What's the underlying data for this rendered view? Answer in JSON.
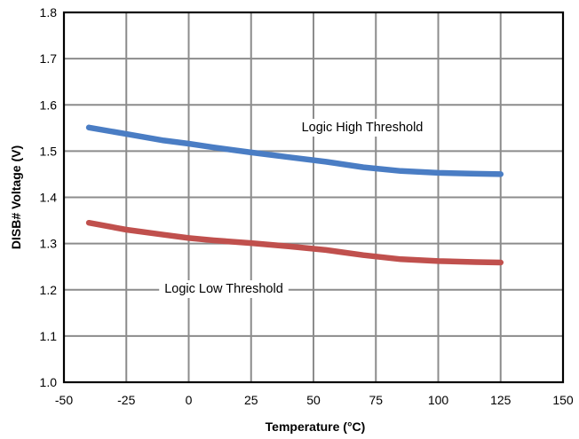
{
  "chart_data": {
    "type": "line",
    "xlabel": "Temperature (°C)",
    "ylabel": "DISB# Voltage (V)",
    "xlim": [
      -50,
      150
    ],
    "ylim": [
      1.0,
      1.8
    ],
    "x_ticks": [
      "-50",
      "-25",
      "0",
      "25",
      "50",
      "75",
      "100",
      "125",
      "150"
    ],
    "y_ticks": [
      "1.0",
      "1.1",
      "1.2",
      "1.3",
      "1.4",
      "1.5",
      "1.6",
      "1.7",
      "1.8"
    ],
    "grid": true,
    "series": [
      {
        "name": "Logic High Threshold",
        "color": "#4a7dc4",
        "x": [
          -40,
          -25,
          -10,
          0,
          10,
          25,
          40,
          55,
          70,
          85,
          100,
          115,
          125
        ],
        "y": [
          1.551,
          1.537,
          1.523,
          1.516,
          1.508,
          1.497,
          1.487,
          1.477,
          1.465,
          1.457,
          1.453,
          1.451,
          1.45
        ]
      },
      {
        "name": "Logic Low Threshold",
        "color": "#c0504d",
        "x": [
          -40,
          -25,
          -10,
          0,
          10,
          25,
          40,
          55,
          70,
          85,
          100,
          115,
          125
        ],
        "y": [
          1.345,
          1.33,
          1.319,
          1.312,
          1.307,
          1.301,
          1.294,
          1.286,
          1.275,
          1.266,
          1.262,
          1.26,
          1.259
        ]
      }
    ]
  }
}
